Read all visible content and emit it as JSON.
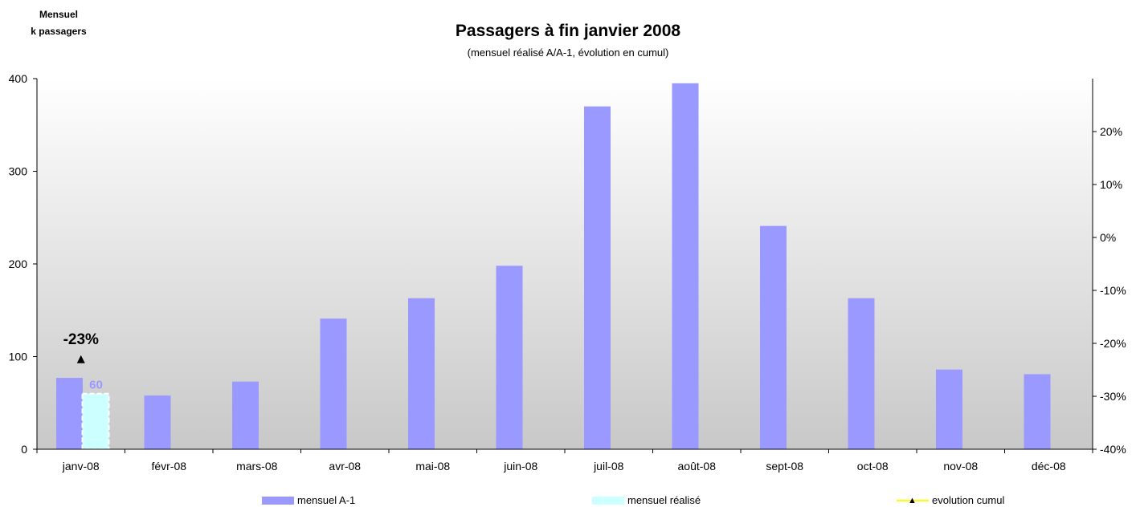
{
  "left_unit": {
    "line1": "Mensuel",
    "line2": "k passagers"
  },
  "colors": {
    "previous_year": "#9999ff",
    "realised": "#ccffff",
    "cumulative": "#ffff00",
    "marker": "#000000",
    "label_text": "#9999ff"
  },
  "chart_data": {
    "type": "bar",
    "title": "Passagers à fin janvier 2008",
    "subtitle": "(mensuel réalisé A/A-1, évolution en cumul)",
    "xlabel": "",
    "ylabel": "",
    "categories": [
      "janv-08",
      "févr-08",
      "mars-08",
      "avr-08",
      "mai-08",
      "juin-08",
      "juil-08",
      "août-08",
      "sept-08",
      "oct-08",
      "nov-08",
      "déc-08"
    ],
    "series": [
      {
        "name": "mensuel A-1",
        "kind": "bar",
        "values": [
          77,
          58,
          73,
          141,
          163,
          198,
          370,
          395,
          241,
          163,
          86,
          81
        ]
      },
      {
        "name": "mensuel réalisé",
        "kind": "bar",
        "values": [
          60,
          null,
          null,
          null,
          null,
          null,
          null,
          null,
          null,
          null,
          null,
          null
        ],
        "data_labels": [
          "60"
        ]
      },
      {
        "name": "evolution cumul",
        "kind": "line",
        "axis": "right",
        "values": [
          -23,
          null,
          null,
          null,
          null,
          null,
          null,
          null,
          null,
          null,
          null,
          null
        ],
        "data_labels": [
          "-23%"
        ]
      }
    ],
    "ylim": [
      0,
      400
    ],
    "yticks": [
      "0",
      "100",
      "200",
      "300",
      "400"
    ],
    "y2lim": [
      -40,
      30
    ],
    "y2ticks": [
      "-40%",
      "-30%",
      "-20%",
      "-10%",
      "0%",
      "10%",
      "20%"
    ],
    "legend_position": "bottom",
    "grid": false
  }
}
